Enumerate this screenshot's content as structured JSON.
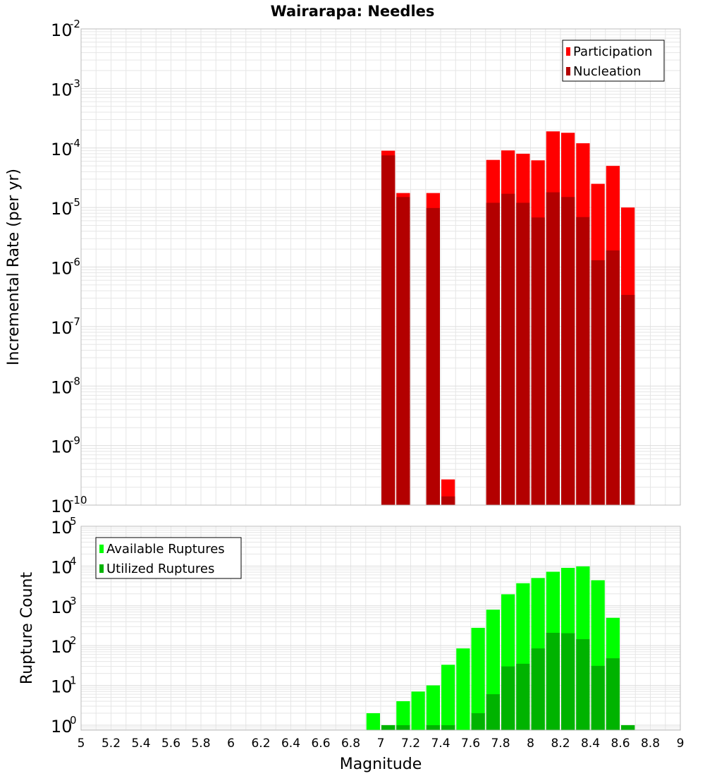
{
  "title": "Wairarapa: Needles",
  "xlabel": "Magnitude",
  "x_ticks": [
    "5",
    "5.2",
    "5.4",
    "5.6",
    "5.8",
    "6",
    "6.2",
    "6.4",
    "6.6",
    "6.8",
    "7",
    "7.2",
    "7.4",
    "7.6",
    "7.8",
    "8",
    "8.2",
    "8.4",
    "8.6",
    "8.8",
    "9"
  ],
  "colors": {
    "participation": "#ff0000",
    "nucleation": "#b30000",
    "available": "#00ff00",
    "utilized": "#00b300",
    "grid": "#e6e6e6",
    "frame": "#bbbbbb"
  },
  "chart_data": [
    {
      "type": "bar",
      "title": "Wairarapa: Needles",
      "xlabel": "Magnitude",
      "ylabel": "Incremental Rate (per yr)",
      "yscale": "log",
      "ylim": [
        1e-10,
        0.01
      ],
      "xlim": [
        5,
        9
      ],
      "y_ticks": [
        {
          "base": "10",
          "exp": "-10"
        },
        {
          "base": "10",
          "exp": "-9"
        },
        {
          "base": "10",
          "exp": "-8"
        },
        {
          "base": "10",
          "exp": "-7"
        },
        {
          "base": "10",
          "exp": "-6"
        },
        {
          "base": "10",
          "exp": "-5"
        },
        {
          "base": "10",
          "exp": "-4"
        },
        {
          "base": "10",
          "exp": "-3"
        },
        {
          "base": "10",
          "exp": "-2"
        }
      ],
      "legend_position": "top-right",
      "x": [
        7.05,
        7.15,
        7.35,
        7.45,
        7.75,
        7.85,
        7.95,
        8.05,
        8.15,
        8.25,
        8.35,
        8.45,
        8.55,
        8.65
      ],
      "series": [
        {
          "name": "Participation",
          "values": [
            9e-05,
            1.75e-05,
            1.75e-05,
            2.7e-10,
            6.3e-05,
            9.1e-05,
            8e-05,
            6.2e-05,
            0.00019,
            0.00018,
            0.00012,
            2.5e-05,
            5e-05,
            1e-05
          ]
        },
        {
          "name": "Nucleation",
          "values": [
            7.5e-05,
            1.5e-05,
            9.8e-06,
            1.4e-10,
            1.2e-05,
            1.7e-05,
            1.2e-05,
            6.8e-06,
            1.8e-05,
            1.5e-05,
            6.9e-06,
            1.3e-06,
            1.9e-06,
            3.4e-07
          ]
        }
      ]
    },
    {
      "type": "bar",
      "xlabel": "Magnitude",
      "ylabel": "Rupture Count",
      "yscale": "log",
      "ylim": [
        0.75,
        100000
      ],
      "xlim": [
        5,
        9
      ],
      "y_ticks": [
        {
          "value": 1,
          "base": "10",
          "exp": "0"
        },
        {
          "value": 10,
          "base": "10",
          "exp": "1"
        },
        {
          "value": 100,
          "base": "10",
          "exp": "2"
        },
        {
          "value": 1000,
          "base": "10",
          "exp": "3"
        },
        {
          "value": 10000,
          "base": "10",
          "exp": "4"
        },
        {
          "value": 100000,
          "base": "10",
          "exp": "5"
        }
      ],
      "legend_position": "top-left",
      "x": [
        6.95,
        7.05,
        7.15,
        7.25,
        7.35,
        7.45,
        7.55,
        7.65,
        7.75,
        7.85,
        7.95,
        8.05,
        8.15,
        8.25,
        8.35,
        8.45,
        8.55,
        8.65
      ],
      "series": [
        {
          "name": "Available Ruptures",
          "values": [
            2,
            1,
            4,
            7,
            10,
            33,
            85,
            280,
            800,
            1950,
            3700,
            5000,
            7200,
            9000,
            9800,
            4400,
            500,
            1
          ]
        },
        {
          "name": "Utilized Ruptures",
          "values": [
            0,
            1,
            1,
            0,
            1,
            1,
            0,
            2,
            6,
            30,
            35,
            85,
            210,
            205,
            145,
            31,
            48,
            1
          ]
        }
      ]
    }
  ]
}
